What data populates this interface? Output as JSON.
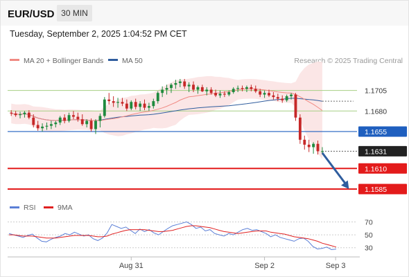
{
  "header": {
    "symbol": "EUR/USD",
    "timeframe": "30 MIN",
    "timestamp": "Tuesday, September 2, 2025 1:04:52 PM CET"
  },
  "legend": {
    "ma20_label": "MA 20 + Bollinger Bands",
    "ma20_color": "#f08a83",
    "ma50_label": "MA 50",
    "ma50_color": "#2f5d9e",
    "credit": "Research © 2025 Trading Central"
  },
  "rsi_legend": {
    "rsi_label": "RSI",
    "rsi_color": "#5b7fd6",
    "ma_label": "9MA",
    "ma_color": "#e02020"
  },
  "colors": {
    "up": "#1f8a3e",
    "down": "#c62828",
    "band": "#fbe3e3",
    "resistance": "#a6cf83",
    "pivot": "#1f5fbf",
    "support": "#e31b1b",
    "arrow": "#2f5d9e",
    "current_box": "#222222"
  },
  "chart_data": [
    {
      "type": "candlestick",
      "ylim": [
        1.1574,
        1.173
      ],
      "x_tick_labels": [
        "Aug 31",
        "Sep 2",
        "Sep 3"
      ],
      "x_tick_positions": [
        27,
        57,
        73
      ],
      "n_bars": 78,
      "levels": [
        {
          "value": 1.1705,
          "label": "1.1705",
          "kind": "resistance"
        },
        {
          "value": 1.168,
          "label": "1.1680",
          "kind": "resistance"
        },
        {
          "value": 1.1655,
          "label": "1.1655",
          "kind": "pivot"
        },
        {
          "value": 1.1631,
          "label": "1.1631",
          "kind": "current"
        },
        {
          "value": 1.161,
          "label": "1.1610",
          "kind": "support"
        },
        {
          "value": 1.1585,
          "label": "1.1585",
          "kind": "support"
        }
      ],
      "forecast_arrow": {
        "from_index": 70,
        "from_price": 1.1629,
        "to_index": 76,
        "to_price": 1.1585
      },
      "candles": [
        [
          1.1678,
          1.1681,
          1.1674,
          1.1677
        ],
        [
          1.1677,
          1.168,
          1.1673,
          1.1675
        ],
        [
          1.1675,
          1.1679,
          1.1671,
          1.1676
        ],
        [
          1.1676,
          1.168,
          1.1672,
          1.1678
        ],
        [
          1.1678,
          1.1681,
          1.167,
          1.1672
        ],
        [
          1.1672,
          1.1676,
          1.166,
          1.1663
        ],
        [
          1.1663,
          1.1668,
          1.1656,
          1.1659
        ],
        [
          1.1659,
          1.1665,
          1.1655,
          1.1661
        ],
        [
          1.1661,
          1.1666,
          1.1657,
          1.1662
        ],
        [
          1.1662,
          1.1668,
          1.1658,
          1.1664
        ],
        [
          1.1664,
          1.1668,
          1.166,
          1.1666
        ],
        [
          1.1666,
          1.1674,
          1.1663,
          1.1672
        ],
        [
          1.1672,
          1.1676,
          1.1665,
          1.1668
        ],
        [
          1.1668,
          1.1678,
          1.1666,
          1.1675
        ],
        [
          1.1675,
          1.168,
          1.167,
          1.1673
        ],
        [
          1.1673,
          1.1678,
          1.1667,
          1.167
        ],
        [
          1.167,
          1.1676,
          1.1662,
          1.1664
        ],
        [
          1.1664,
          1.167,
          1.166,
          1.1668
        ],
        [
          1.1668,
          1.1671,
          1.1655,
          1.1658
        ],
        [
          1.1658,
          1.167,
          1.1652,
          1.1668
        ],
        [
          1.1668,
          1.1677,
          1.166,
          1.1674
        ],
        [
          1.1674,
          1.1697,
          1.1672,
          1.1694
        ],
        [
          1.1694,
          1.1702,
          1.1688,
          1.1692
        ],
        [
          1.1692,
          1.1698,
          1.1685,
          1.169
        ],
        [
          1.169,
          1.1696,
          1.1684,
          1.1691
        ],
        [
          1.1691,
          1.1696,
          1.1686,
          1.1689
        ],
        [
          1.1689,
          1.1694,
          1.168,
          1.1683
        ],
        [
          1.1683,
          1.1693,
          1.1681,
          1.1691
        ],
        [
          1.1691,
          1.1695,
          1.1682,
          1.1685
        ],
        [
          1.1685,
          1.1692,
          1.168,
          1.1689
        ],
        [
          1.1689,
          1.1694,
          1.1681,
          1.1684
        ],
        [
          1.1684,
          1.169,
          1.168,
          1.1686
        ],
        [
          1.1686,
          1.1695,
          1.1683,
          1.1692
        ],
        [
          1.1692,
          1.1704,
          1.1689,
          1.1702
        ],
        [
          1.1702,
          1.171,
          1.1697,
          1.1706
        ],
        [
          1.1706,
          1.1712,
          1.17,
          1.1708
        ],
        [
          1.1708,
          1.1714,
          1.1702,
          1.1712
        ],
        [
          1.1712,
          1.1718,
          1.1707,
          1.1714
        ],
        [
          1.1714,
          1.1719,
          1.1709,
          1.1716
        ],
        [
          1.1716,
          1.1719,
          1.1707,
          1.171
        ],
        [
          1.171,
          1.1715,
          1.1703,
          1.1712
        ],
        [
          1.1712,
          1.1716,
          1.1703,
          1.1706
        ],
        [
          1.1706,
          1.1711,
          1.1701,
          1.1709
        ],
        [
          1.1709,
          1.1712,
          1.1703,
          1.1704
        ],
        [
          1.1704,
          1.1709,
          1.1699,
          1.1706
        ],
        [
          1.1706,
          1.1709,
          1.17,
          1.1702
        ],
        [
          1.1702,
          1.1706,
          1.1697,
          1.1699
        ],
        [
          1.1699,
          1.1705,
          1.1696,
          1.1701
        ],
        [
          1.1701,
          1.1704,
          1.1697,
          1.17
        ],
        [
          1.17,
          1.1705,
          1.1698,
          1.1703
        ],
        [
          1.1703,
          1.1709,
          1.1701,
          1.1707
        ],
        [
          1.1707,
          1.1711,
          1.1703,
          1.1708
        ],
        [
          1.1708,
          1.1711,
          1.1704,
          1.1707
        ],
        [
          1.1707,
          1.1711,
          1.1703,
          1.1709
        ],
        [
          1.1709,
          1.1712,
          1.1704,
          1.1707
        ],
        [
          1.1707,
          1.1711,
          1.1702,
          1.1704
        ],
        [
          1.1704,
          1.1707,
          1.1697,
          1.17
        ],
        [
          1.17,
          1.1705,
          1.1696,
          1.1702
        ],
        [
          1.1702,
          1.1706,
          1.1697,
          1.1699
        ],
        [
          1.1699,
          1.1703,
          1.1694,
          1.1697
        ],
        [
          1.1697,
          1.1701,
          1.1692,
          1.1695
        ],
        [
          1.1695,
          1.1699,
          1.169,
          1.1693
        ],
        [
          1.1693,
          1.17,
          1.1691,
          1.1698
        ],
        [
          1.1698,
          1.1702,
          1.1694,
          1.17
        ],
        [
          1.17,
          1.1702,
          1.1668,
          1.1672
        ],
        [
          1.1672,
          1.1676,
          1.164,
          1.1645
        ],
        [
          1.1645,
          1.165,
          1.1633,
          1.1639
        ],
        [
          1.1639,
          1.1645,
          1.163,
          1.1636
        ],
        [
          1.1636,
          1.1642,
          1.1628,
          1.164
        ],
        [
          1.164,
          1.1644,
          1.1627,
          1.1631
        ],
        [
          1.1631,
          1.1636,
          1.1627,
          1.1631
        ]
      ]
    },
    {
      "type": "line",
      "name": "RSI",
      "ylim": [
        20,
        78
      ],
      "y_tick_labels": [
        "70",
        "50",
        "30"
      ],
      "y_ticks": [
        70,
        50,
        30
      ],
      "series": [
        {
          "name": "RSI",
          "values": [
            52,
            50,
            48,
            46,
            49,
            51,
            45,
            40,
            39,
            43,
            46,
            48,
            52,
            50,
            54,
            51,
            48,
            50,
            44,
            41,
            45,
            53,
            66,
            63,
            60,
            62,
            57,
            52,
            59,
            55,
            58,
            53,
            50,
            55,
            60,
            64,
            66,
            68,
            70,
            66,
            60,
            62,
            56,
            58,
            52,
            50,
            48,
            52,
            50,
            54,
            58,
            60,
            57,
            58,
            55,
            52,
            47,
            50,
            46,
            44,
            42,
            40,
            44,
            45,
            40,
            32,
            28,
            29,
            31,
            27,
            28
          ]
        },
        {
          "name": "9MA",
          "values": [
            50,
            50,
            49,
            48,
            48,
            48,
            47,
            46,
            45,
            45,
            45,
            46,
            47,
            48,
            49,
            49,
            49,
            49,
            48,
            47,
            47,
            48,
            51,
            53,
            55,
            57,
            58,
            58,
            58,
            58,
            57,
            56,
            55,
            55,
            56,
            57,
            59,
            61,
            63,
            64,
            64,
            63,
            62,
            61,
            59,
            57,
            55,
            54,
            53,
            52,
            53,
            54,
            55,
            56,
            56,
            56,
            54,
            53,
            52,
            51,
            49,
            47,
            46,
            45,
            44,
            42,
            40,
            37,
            35,
            33,
            31
          ]
        }
      ]
    }
  ]
}
